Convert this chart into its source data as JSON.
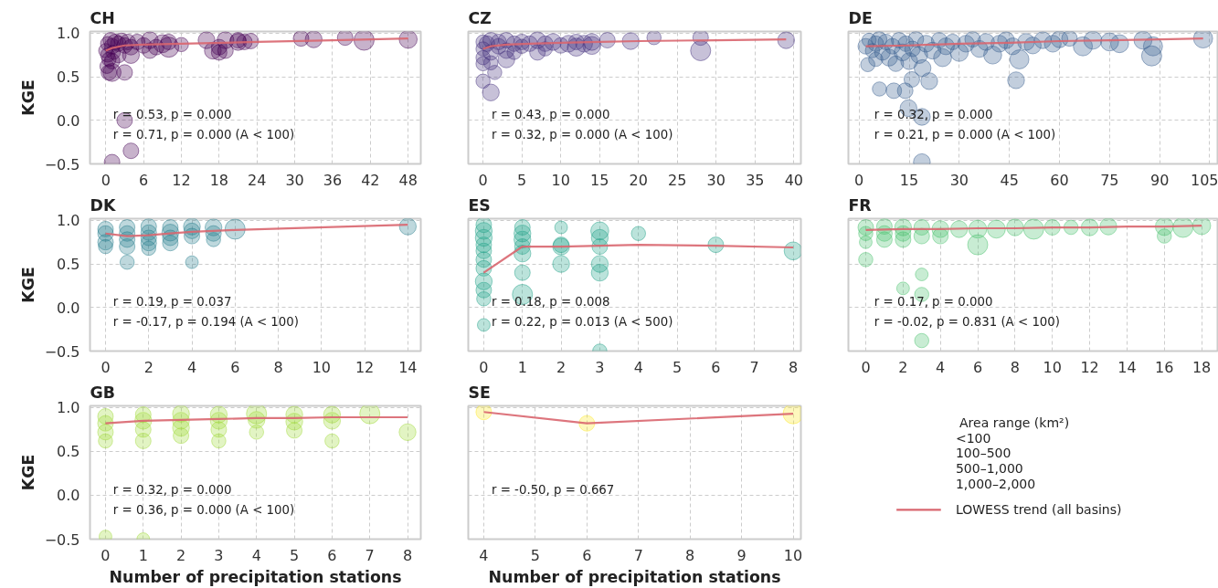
{
  "chart_data": [
    {
      "type": "bubble",
      "title": "CH",
      "ylabel": "KGE",
      "xlim": [
        -2.5,
        50
      ],
      "ylim": [
        -0.5,
        1.02
      ],
      "xticks": [
        0,
        6,
        12,
        18,
        24,
        30,
        36,
        42,
        48
      ],
      "yticks": [
        {
          "value": -0.5,
          "label": "−0.5"
        },
        {
          "value": 0,
          "label": "0.0"
        },
        {
          "value": 0.5,
          "label": "0.5"
        },
        {
          "value": 1,
          "label": "1.0"
        }
      ],
      "grid": true,
      "annotations": [
        "r = 0.53, p = 0.000",
        "r = 0.71, p = 0.000 (A < 100)"
      ],
      "series": [
        {
          "color": "#440154",
          "x": [
            0,
            0.3,
            0.5,
            0.8,
            1,
            1.2,
            1.5,
            2,
            2.5,
            3,
            3.5,
            4,
            0.2,
            0.5,
            1,
            3,
            0.3,
            1,
            2,
            4,
            5,
            6,
            7,
            7,
            8,
            9,
            10,
            10,
            12,
            16,
            17,
            18,
            18,
            19,
            19,
            21,
            21,
            22,
            23,
            31,
            33,
            38,
            41,
            48,
            3,
            4,
            1
          ],
          "values": [
            0.8,
            0.88,
            0.7,
            0.92,
            0.85,
            0.78,
            0.9,
            0.88,
            0.92,
            0.86,
            0.9,
            0.84,
            0.62,
            0.55,
            0.55,
            0.55,
            0.75,
            0.68,
            0.75,
            0.75,
            0.9,
            0.86,
            0.8,
            0.92,
            0.84,
            0.88,
            0.9,
            0.84,
            0.87,
            0.92,
            0.8,
            0.84,
            0.78,
            0.92,
            0.8,
            0.9,
            0.92,
            0.9,
            0.91,
            0.94,
            0.93,
            0.95,
            0.92,
            0.93,
            0.0,
            -0.35,
            -0.48
          ],
          "sizes": [
            0.5,
            0.5,
            0.5,
            0.6,
            0.6,
            0.5,
            0.6,
            0.6,
            0.5,
            0.6,
            0.6,
            0.6,
            0.5,
            0.6,
            0.8,
            0.6,
            0.5,
            0.6,
            0.6,
            0.7,
            0.6,
            0.6,
            0.6,
            0.7,
            0.6,
            0.8,
            0.6,
            1.0,
            0.5,
            0.7,
            0.7,
            0.6,
            0.6,
            0.7,
            0.6,
            0.7,
            0.6,
            0.6,
            0.6,
            0.6,
            0.7,
            0.6,
            1.0,
            0.8,
            0.6,
            0.6,
            0.6
          ]
        },
        {
          "type": "line",
          "color": "#d9666f",
          "x": [
            0,
            1,
            3,
            6,
            12,
            24,
            36,
            48
          ],
          "values": [
            0.8,
            0.83,
            0.86,
            0.87,
            0.88,
            0.9,
            0.92,
            0.94
          ]
        }
      ]
    },
    {
      "type": "bubble",
      "title": "CZ",
      "xlim": [
        -1.9,
        40.9
      ],
      "ylim": [
        -0.5,
        1.02
      ],
      "xticks": [
        0,
        5,
        10,
        15,
        20,
        25,
        30,
        35,
        40
      ],
      "yticks": [
        -0.5,
        0,
        0.5,
        1
      ],
      "tick_labels": "x",
      "grid": true,
      "annotations": [
        "r = 0.43, p = 0.000",
        "r = 0.32, p = 0.000 (A < 100)"
      ],
      "series": [
        {
          "color": "#46327e",
          "x": [
            0,
            0,
            0,
            0,
            0,
            0.5,
            1,
            1,
            1,
            1,
            2,
            2,
            3,
            3,
            3,
            4,
            4,
            5,
            5,
            6,
            7,
            7,
            8,
            8,
            9,
            10,
            11,
            12,
            12,
            13,
            14,
            14,
            16,
            19,
            22,
            28,
            28,
            39,
            1.5
          ],
          "values": [
            0.9,
            0.82,
            0.72,
            0.65,
            0.45,
            0.88,
            0.92,
            0.78,
            0.66,
            0.32,
            0.9,
            0.85,
            0.92,
            0.8,
            0.7,
            0.88,
            0.78,
            0.9,
            0.85,
            0.88,
            0.78,
            0.92,
            0.82,
            0.88,
            0.9,
            0.86,
            0.88,
            0.9,
            0.84,
            0.88,
            0.9,
            0.86,
            0.92,
            0.91,
            0.95,
            0.95,
            0.8,
            0.92,
            0.55
          ],
          "sizes": [
            0.5,
            0.5,
            0.5,
            0.5,
            0.5,
            0.6,
            0.6,
            0.6,
            0.5,
            0.7,
            0.6,
            0.6,
            0.6,
            0.6,
            0.7,
            0.6,
            0.5,
            0.6,
            0.5,
            0.6,
            0.6,
            0.7,
            0.5,
            0.6,
            0.7,
            0.6,
            0.7,
            0.6,
            0.8,
            0.7,
            0.7,
            0.8,
            0.6,
            0.7,
            0.5,
            0.6,
            1.0,
            0.7,
            0.5
          ]
        },
        {
          "type": "line",
          "color": "#d9666f",
          "x": [
            0,
            1,
            3,
            6,
            10,
            15,
            20,
            30,
            39
          ],
          "values": [
            0.82,
            0.85,
            0.87,
            0.88,
            0.89,
            0.9,
            0.91,
            0.92,
            0.93
          ]
        }
      ]
    },
    {
      "type": "bubble",
      "title": "DE",
      "xlim": [
        -3.2,
        107.6
      ],
      "ylim": [
        -0.5,
        1.02
      ],
      "xticks": [
        0,
        15,
        30,
        45,
        60,
        75,
        90,
        105
      ],
      "yticks": [
        -0.5,
        0,
        0.5,
        1
      ],
      "tick_labels": "x",
      "grid": true,
      "annotations": [
        "r = 0.32, p = 0.000",
        "r = 0.21, p = 0.000 (A < 100)"
      ],
      "series": [
        {
          "color": "#365c8d",
          "x": [
            2,
            3,
            4,
            5,
            5,
            6,
            7,
            8,
            9,
            10,
            11,
            12,
            13,
            14,
            15,
            16,
            17,
            18,
            19,
            20,
            22,
            24,
            25,
            26,
            28,
            30,
            32,
            34,
            36,
            38,
            40,
            42,
            44,
            46,
            48,
            50,
            52,
            55,
            58,
            60,
            63,
            67,
            70,
            75,
            78,
            85,
            88,
            87.6,
            103,
            2.6,
            6.1,
            10.4,
            13.8,
            14.8,
            18.8,
            18.8,
            47,
            21,
            15.8
          ],
          "values": [
            0.85,
            0.92,
            0.8,
            0.88,
            0.7,
            0.93,
            0.78,
            0.9,
            0.72,
            0.85,
            0.65,
            0.92,
            0.78,
            0.88,
            0.68,
            0.82,
            0.93,
            0.75,
            0.6,
            0.88,
            0.8,
            0.92,
            0.72,
            0.85,
            0.9,
            0.78,
            0.88,
            0.93,
            0.82,
            0.9,
            0.75,
            0.88,
            0.92,
            0.85,
            0.7,
            0.9,
            0.86,
            0.92,
            0.88,
            0.93,
            0.94,
            0.85,
            0.92,
            0.9,
            0.88,
            0.92,
            0.85,
            0.74,
            0.94,
            0.64,
            0.36,
            0.34,
            0.34,
            0.14,
            0.04,
            -0.48,
            0.46,
            0.45,
            0.47
          ],
          "sizes": [
            0.6,
            0.5,
            0.5,
            0.6,
            0.5,
            0.6,
            0.6,
            0.6,
            0.7,
            0.6,
            0.6,
            0.6,
            0.7,
            0.6,
            0.7,
            0.6,
            0.6,
            0.7,
            0.7,
            0.7,
            0.7,
            0.6,
            0.8,
            0.7,
            0.6,
            0.8,
            0.7,
            0.6,
            0.7,
            0.7,
            0.8,
            0.7,
            0.7,
            0.7,
            0.9,
            0.7,
            0.7,
            0.7,
            0.7,
            0.7,
            0.6,
            0.9,
            0.8,
            0.8,
            0.8,
            0.8,
            0.9,
            1.0,
            0.9,
            0.5,
            0.5,
            0.6,
            0.6,
            0.7,
            0.7,
            0.7,
            0.7,
            0.7,
            0.6
          ]
        },
        {
          "type": "line",
          "color": "#d9666f",
          "x": [
            2,
            15,
            30,
            45,
            60,
            75,
            90,
            103
          ],
          "values": [
            0.85,
            0.86,
            0.88,
            0.89,
            0.91,
            0.92,
            0.93,
            0.94
          ]
        }
      ]
    },
    {
      "type": "bubble",
      "title": "DK",
      "ylabel": "KGE",
      "xlim": [
        -0.72,
        14.6
      ],
      "ylim": [
        -0.5,
        1.02
      ],
      "xticks": [
        0,
        2,
        4,
        6,
        8,
        10,
        12,
        14
      ],
      "yticks": [
        {
          "value": -0.5,
          "label": "−0.5"
        },
        {
          "value": 0,
          "label": "0.0"
        },
        {
          "value": 0.5,
          "label": "0.5"
        },
        {
          "value": 1,
          "label": "1.0"
        }
      ],
      "grid": true,
      "annotations": [
        "r = 0.19, p = 0.037",
        "r = -0.17, p = 0.194 (A < 100)"
      ],
      "series": [
        {
          "color": "#277f8e",
          "x": [
            0,
            0,
            0,
            0,
            1,
            1,
            1,
            1,
            1,
            2,
            2,
            2,
            2,
            2,
            3,
            3,
            3,
            3,
            4,
            4,
            4,
            4,
            5,
            5,
            5,
            6,
            14
          ],
          "values": [
            0.9,
            0.85,
            0.75,
            0.7,
            0.92,
            0.85,
            0.78,
            0.7,
            0.52,
            0.93,
            0.86,
            0.8,
            0.74,
            0.68,
            0.92,
            0.86,
            0.8,
            0.74,
            0.93,
            0.88,
            0.82,
            0.52,
            0.92,
            0.85,
            0.78,
            0.9,
            0.93
          ],
          "sizes": [
            0.6,
            0.6,
            0.6,
            0.5,
            0.6,
            0.6,
            0.6,
            0.6,
            0.5,
            0.6,
            0.6,
            0.6,
            0.6,
            0.5,
            0.6,
            0.7,
            0.6,
            0.6,
            0.7,
            0.6,
            0.6,
            0.4,
            0.7,
            0.6,
            0.5,
            1.0,
            0.7
          ]
        },
        {
          "type": "line",
          "color": "#d9666f",
          "x": [
            0,
            1,
            2,
            3,
            4,
            5,
            6,
            14
          ],
          "values": [
            0.85,
            0.82,
            0.83,
            0.85,
            0.87,
            0.88,
            0.89,
            0.95
          ]
        }
      ]
    },
    {
      "type": "bubble",
      "title": "ES",
      "xlim": [
        -0.4,
        8.2
      ],
      "ylim": [
        -0.5,
        1.02
      ],
      "xticks": [
        0,
        1,
        2,
        3,
        4,
        5,
        6,
        7,
        8
      ],
      "yticks": [
        -0.5,
        0,
        0.5,
        1
      ],
      "tick_labels": "x",
      "grid": true,
      "annotations": [
        "r = 0.18, p = 0.008",
        "r = 0.22, p = 0.013 (A < 500)"
      ],
      "series": [
        {
          "color": "#1fa187",
          "x": [
            0,
            0,
            0,
            0,
            0,
            0,
            0,
            0,
            0,
            0,
            0,
            1,
            1,
            1,
            1,
            1,
            1,
            1,
            2,
            2,
            2,
            2,
            3,
            3,
            3,
            3,
            3,
            3,
            4,
            6,
            8
          ],
          "values": [
            0.95,
            0.88,
            0.8,
            0.72,
            0.65,
            0.55,
            0.45,
            0.3,
            0.2,
            0.1,
            -0.2,
            0.92,
            0.85,
            0.78,
            0.7,
            0.62,
            0.4,
            0.15,
            0.92,
            0.72,
            0.7,
            0.5,
            0.88,
            0.8,
            0.7,
            0.5,
            0.4,
            -0.5,
            0.85,
            0.72,
            0.65
          ],
          "sizes": [
            0.6,
            0.7,
            0.7,
            0.6,
            0.6,
            0.6,
            0.6,
            0.7,
            0.6,
            0.5,
            0.4,
            0.6,
            0.7,
            0.7,
            0.6,
            0.7,
            0.6,
            1.0,
            0.4,
            0.6,
            0.7,
            0.7,
            0.8,
            0.7,
            0.6,
            0.7,
            0.7,
            0.5,
            0.5,
            0.6,
            0.8
          ]
        },
        {
          "type": "line",
          "color": "#d9666f",
          "x": [
            0,
            1,
            2,
            3,
            4,
            6,
            8
          ],
          "values": [
            0.4,
            0.7,
            0.7,
            0.71,
            0.72,
            0.71,
            0.69
          ]
        }
      ]
    },
    {
      "type": "bubble",
      "title": "FR",
      "xlim": [
        -0.93,
        18.9
      ],
      "ylim": [
        -0.5,
        1.02
      ],
      "xticks": [
        0,
        2,
        4,
        6,
        8,
        10,
        12,
        14,
        16,
        18
      ],
      "yticks": [
        -0.5,
        0,
        0.5,
        1
      ],
      "tick_labels": "x",
      "grid": true,
      "annotations": [
        "r = 0.17, p = 0.000",
        "r = -0.02, p = 0.831 (A < 100)"
      ],
      "series": [
        {
          "color": "#4ac16d",
          "x": [
            0,
            0,
            0,
            0,
            1,
            1,
            1,
            2,
            2,
            2,
            2,
            3,
            3,
            3,
            3,
            3,
            4,
            4,
            5,
            6,
            6,
            7,
            8,
            9,
            10,
            11,
            12,
            13,
            16,
            16,
            17,
            18
          ],
          "values": [
            0.92,
            0.85,
            0.75,
            0.55,
            0.93,
            0.85,
            0.78,
            0.92,
            0.85,
            0.78,
            0.22,
            0.92,
            0.82,
            0.38,
            0.15,
            -0.38,
            0.9,
            0.82,
            0.9,
            0.9,
            0.72,
            0.9,
            0.92,
            0.9,
            0.92,
            0.92,
            0.92,
            0.93,
            0.93,
            0.82,
            0.92,
            0.94
          ],
          "sizes": [
            0.6,
            0.5,
            0.4,
            0.5,
            0.6,
            0.6,
            0.6,
            0.7,
            0.6,
            0.6,
            0.4,
            0.6,
            0.6,
            0.4,
            0.5,
            0.5,
            0.7,
            0.6,
            0.7,
            0.8,
            1.0,
            0.8,
            0.7,
            1.0,
            0.6,
            0.5,
            0.7,
            0.7,
            0.8,
            0.5,
            1.0,
            0.8
          ]
        },
        {
          "type": "line",
          "color": "#d9666f",
          "x": [
            0,
            2,
            4,
            6,
            8,
            10,
            12,
            14,
            16,
            18
          ],
          "values": [
            0.89,
            0.9,
            0.9,
            0.91,
            0.91,
            0.92,
            0.92,
            0.93,
            0.93,
            0.94
          ]
        }
      ]
    },
    {
      "type": "bubble",
      "title": "GB",
      "ylabel": "KGE",
      "xlabel": "Number of precipitation stations",
      "xlim": [
        -0.41,
        8.35
      ],
      "ylim": [
        -0.5,
        1.02
      ],
      "xticks": [
        0,
        1,
        2,
        3,
        4,
        5,
        6,
        7,
        8
      ],
      "yticks": [
        {
          "value": -0.5,
          "label": "−0.5"
        },
        {
          "value": 0,
          "label": "0.0"
        },
        {
          "value": 0.5,
          "label": "0.5"
        },
        {
          "value": 1,
          "label": "1.0"
        }
      ],
      "grid": true,
      "annotations": [
        "r = 0.32, p = 0.000",
        "r = 0.36, p = 0.000 (A < 100)"
      ],
      "series": [
        {
          "color": "#a0da39",
          "x": [
            0,
            0,
            0,
            0,
            0,
            1,
            1,
            1,
            1,
            1,
            2,
            2,
            2,
            2,
            3,
            3,
            3,
            3,
            4,
            4,
            4,
            5,
            5,
            5,
            6,
            6,
            6,
            7,
            8
          ],
          "values": [
            0.9,
            0.82,
            0.72,
            0.62,
            -0.47,
            0.92,
            0.85,
            0.75,
            0.62,
            -0.5,
            0.93,
            0.85,
            0.77,
            0.68,
            0.92,
            0.85,
            0.75,
            0.62,
            0.93,
            0.86,
            0.72,
            0.92,
            0.84,
            0.74,
            0.92,
            0.85,
            0.62,
            0.93,
            0.72
          ],
          "sizes": [
            0.6,
            0.6,
            0.6,
            0.5,
            0.4,
            0.6,
            0.7,
            0.6,
            0.6,
            0.4,
            0.7,
            0.7,
            0.7,
            0.6,
            0.7,
            0.7,
            0.6,
            0.5,
            1.0,
            0.7,
            0.5,
            0.7,
            0.7,
            0.6,
            0.7,
            0.7,
            0.5,
            1.0,
            0.7
          ]
        },
        {
          "type": "line",
          "color": "#d9666f",
          "x": [
            0,
            1,
            2,
            3,
            4,
            5,
            6,
            7,
            8
          ],
          "values": [
            0.82,
            0.85,
            0.86,
            0.87,
            0.88,
            0.88,
            0.89,
            0.89,
            0.89
          ]
        }
      ]
    },
    {
      "type": "bubble",
      "title": "SE",
      "xlabel": "Number of precipitation stations",
      "xlim": [
        3.7,
        10.15
      ],
      "ylim": [
        -0.5,
        1.02
      ],
      "xticks": [
        4,
        5,
        6,
        7,
        8,
        9,
        10
      ],
      "yticks": [
        -0.5,
        0,
        0.5,
        1
      ],
      "tick_labels": "x",
      "grid": true,
      "annotations": [
        "r = -0.50, p = 0.667"
      ],
      "series": [
        {
          "color": "#fde725",
          "x": [
            4,
            6,
            10
          ],
          "values": [
            0.95,
            0.82,
            0.93
          ],
          "sizes": [
            0.6,
            0.6,
            1.0
          ]
        },
        {
          "type": "line",
          "color": "#d9666f",
          "x": [
            4,
            6,
            10
          ],
          "values": [
            0.95,
            0.82,
            0.93
          ]
        }
      ]
    },
    {
      "type": "other",
      "legend_title": "Area range (km²)",
      "annotations": [
        "<100",
        "100–500",
        "500–1,000",
        "1,000–2,000",
        "LOWESS trend (all basins)"
      ]
    }
  ]
}
